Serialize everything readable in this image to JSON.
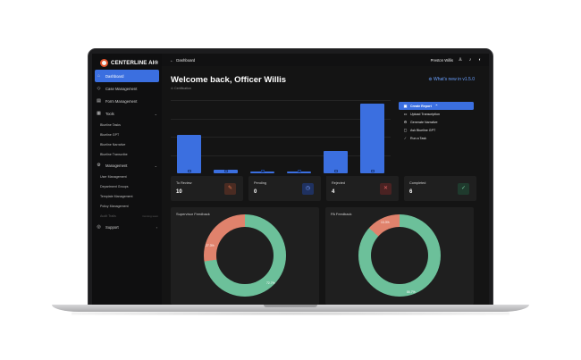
{
  "app": {
    "logo_text": "CENTERLINE AI",
    "logo_sup": "®"
  },
  "sidebar": {
    "items": [
      {
        "label": "Dashboard",
        "icon": "home-icon"
      },
      {
        "label": "Case Management",
        "icon": "folder-icon"
      },
      {
        "label": "Form Management",
        "icon": "form-icon"
      },
      {
        "label": "Tools",
        "icon": "tools-icon"
      },
      {
        "label": "Management",
        "icon": "gear-icon"
      },
      {
        "label": "Support",
        "icon": "help-icon"
      }
    ],
    "tools_sub": [
      "Blueline Tasks",
      "Blueline GPT",
      "Blueline Narrative",
      "Blueline Transcribe"
    ],
    "management_sub": [
      "User Management",
      "Department Groups",
      "Template Management",
      "Policy Management"
    ],
    "audit_label": "Audit Trails",
    "audit_tag": "Coming soon"
  },
  "topbar": {
    "breadcrumb": "Dashboard",
    "user": "Preston Willis"
  },
  "header": {
    "welcome": "Welcome back, Officer Willis",
    "subtitle": "Certification",
    "whats_new": "What's new in v1.5.0"
  },
  "chart_data": {
    "type": "bar",
    "categories": [
      "Search Warrants",
      "PC Statements",
      "Subpoena",
      "Other Reports",
      "Transcriptions",
      "Narratives"
    ],
    "values": [
      21,
      2,
      1,
      1,
      12,
      38
    ],
    "ylim": [
      0,
      40
    ],
    "grid": true,
    "color": "#3b6fe0"
  },
  "actions": {
    "primary": "Create Report",
    "items": [
      "Upload Transcription",
      "Generate Narrative",
      "Ask Blueline GPT",
      "Run a Task"
    ]
  },
  "stats": [
    {
      "label": "To Review",
      "value": "10",
      "icon": "edit-icon",
      "bg": "#4a2b22",
      "fg": "#e0744c"
    },
    {
      "label": "Pending",
      "value": "0",
      "icon": "clock-icon",
      "bg": "#1f3160",
      "fg": "#7aa2ff"
    },
    {
      "label": "Rejected",
      "value": "4",
      "icon": "x-icon",
      "bg": "#4a2222",
      "fg": "#e06060"
    },
    {
      "label": "Completed",
      "value": "6",
      "icon": "check-icon",
      "bg": "#1f3a2d",
      "fg": "#70c49a"
    }
  ],
  "panels": [
    {
      "title": "Supervisor Feedback",
      "slices": [
        {
          "value": 27.3,
          "label": "27.3%",
          "color": "#e0826c"
        },
        {
          "value": 72.7,
          "label": "72.7%",
          "color": "#6cc09a"
        }
      ]
    },
    {
      "title": "PA Feedback",
      "slices": [
        {
          "value": 13.3,
          "label": "13.3%",
          "color": "#e0826c"
        },
        {
          "value": 86.7,
          "label": "86.7%",
          "color": "#6cc09a"
        }
      ]
    }
  ]
}
